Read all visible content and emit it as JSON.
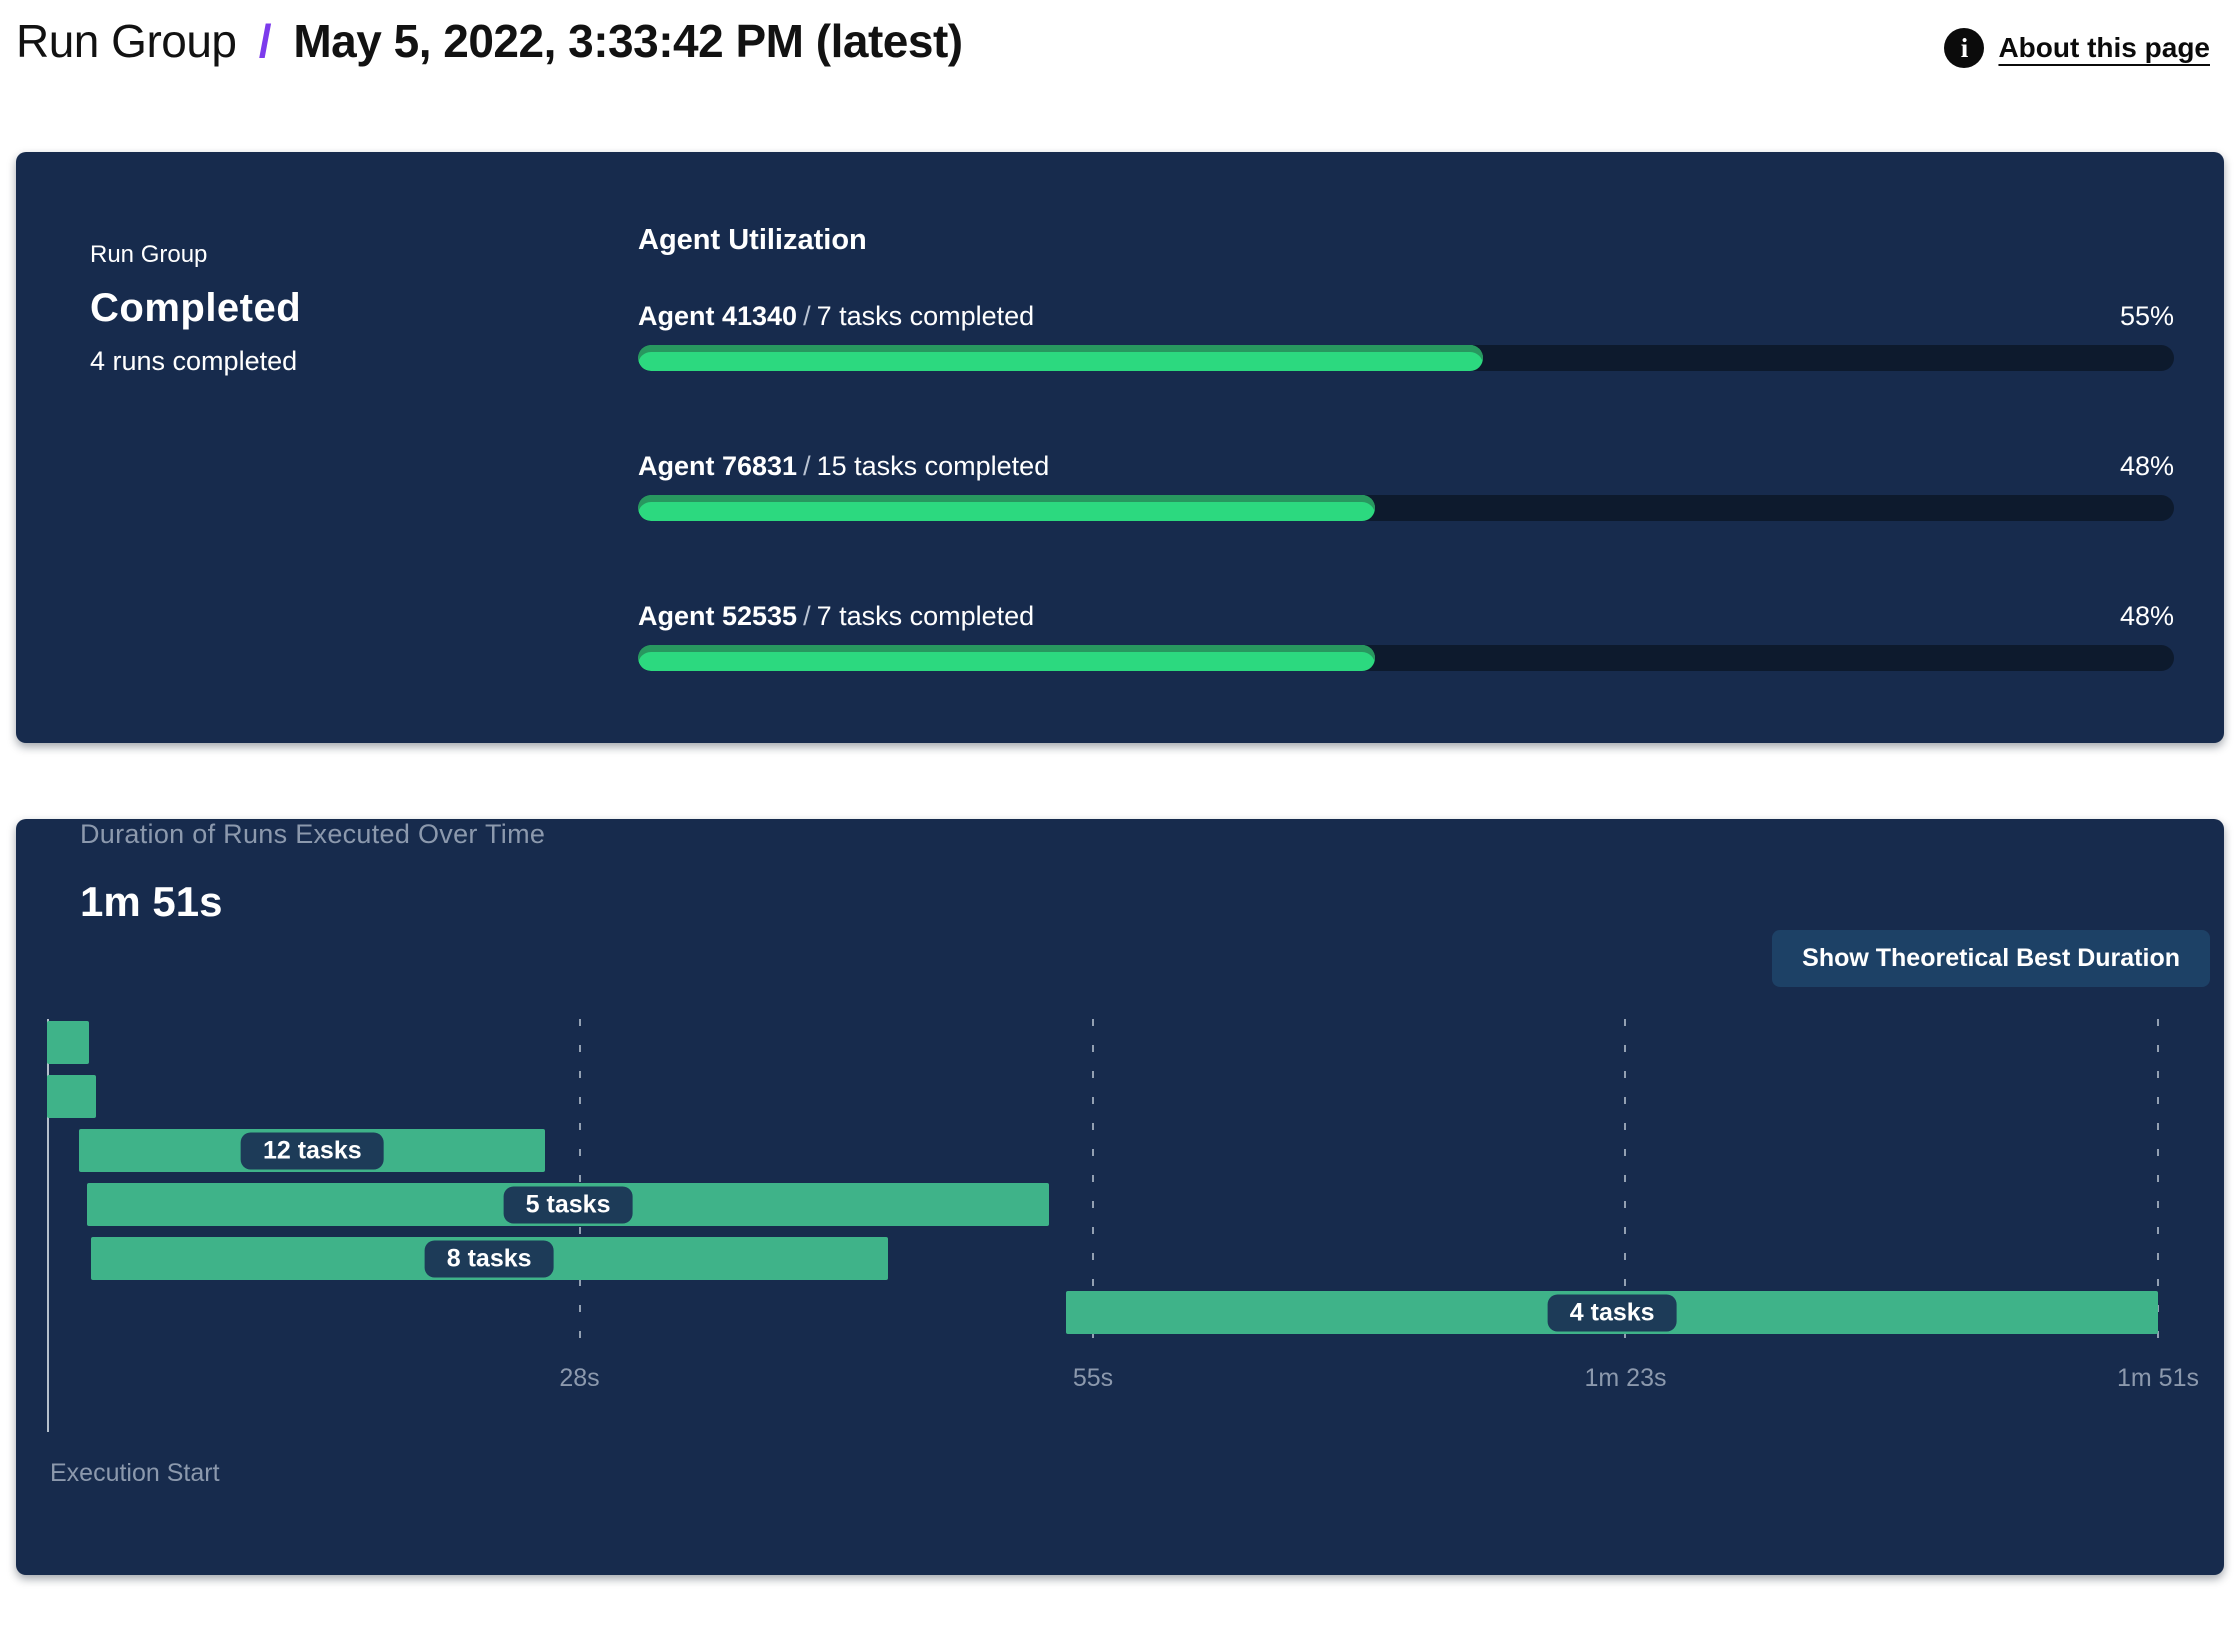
{
  "header": {
    "title_prefix": "Run Group",
    "separator": "/",
    "title": "May 5, 2022, 3:33:42 PM (latest)",
    "info_glyph": "i",
    "about_label": "About this page"
  },
  "summary_card": {
    "label": "Run Group",
    "status": "Completed",
    "detail": "4 runs completed"
  },
  "agent_utilization": {
    "separator": "/"
  },
  "duration_card": {
    "button_label": "Show Theoretical Best Duration"
  },
  "chart_data": [
    {
      "id": "agent-utilization",
      "type": "bar",
      "title": "Agent Utilization",
      "xlim": [
        0,
        100
      ],
      "rows": [
        {
          "name": "Agent 41340",
          "tasks": "7 tasks completed",
          "percent": 55,
          "percent_label": "55%"
        },
        {
          "name": "Agent 76831",
          "tasks": "15 tasks completed",
          "percent": 48,
          "percent_label": "48%"
        },
        {
          "name": "Agent 52535",
          "tasks": "7 tasks completed",
          "percent": 48,
          "percent_label": "48%"
        }
      ]
    },
    {
      "id": "run-durations",
      "type": "gantt",
      "title": "Duration of Runs Executed Over Time",
      "total_label": "1m 51s",
      "x_axis_label": "Execution Start",
      "xlim_seconds": [
        0,
        111
      ],
      "ticks": [
        {
          "label": "28s",
          "seconds": 28
        },
        {
          "label": "55s",
          "seconds": 55
        },
        {
          "label": "1m 23s",
          "seconds": 83
        },
        {
          "label": "1m 51s",
          "seconds": 111
        }
      ],
      "runs": [
        {
          "start_s": 0,
          "end_s": 2.2,
          "tasks_label": null
        },
        {
          "start_s": 0,
          "end_s": 2.6,
          "tasks_label": null
        },
        {
          "start_s": 1.7,
          "end_s": 26.2,
          "tasks_label": "12 tasks"
        },
        {
          "start_s": 2.1,
          "end_s": 52.7,
          "tasks_label": "5 tasks"
        },
        {
          "start_s": 2.3,
          "end_s": 44.2,
          "tasks_label": "8 tasks"
        },
        {
          "start_s": 53.6,
          "end_s": 111,
          "tasks_label": "4 tasks"
        }
      ]
    }
  ],
  "colors": {
    "accent_purple": "#7C3BEC",
    "card_bg": "#172B4D",
    "track_bg": "#0D1A2D",
    "progress_green": "#2CD97F",
    "progress_green_dark": "#28985F",
    "gantt_green": "#3FB389",
    "badge_bg": "#1D3B58",
    "button_bg": "#1D4166",
    "muted_text": "#8C99AD"
  }
}
